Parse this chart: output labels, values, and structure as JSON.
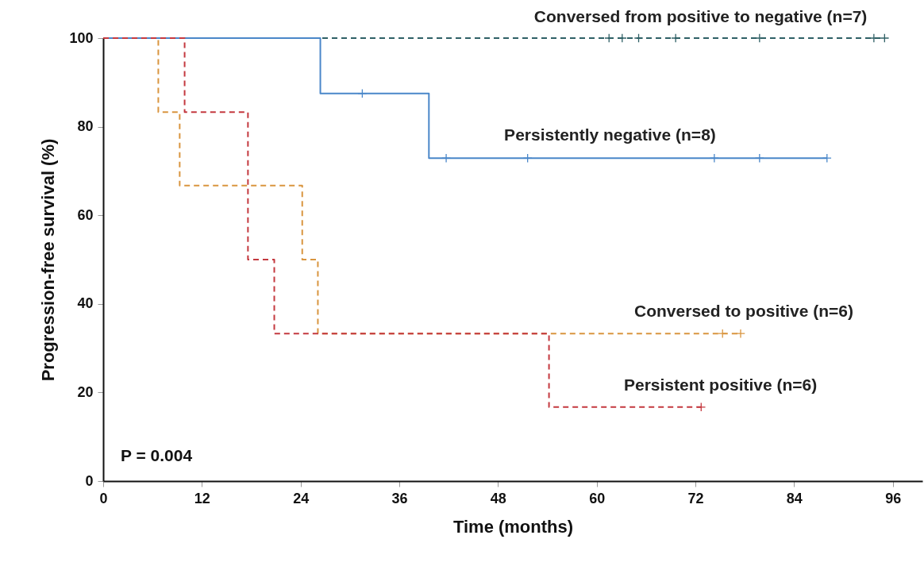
{
  "chart_data": {
    "type": "step",
    "xlabel": "Time (months)",
    "ylabel": "Progression-free survival (%)",
    "xlim": [
      0,
      99.6
    ],
    "ylim": [
      0,
      100
    ],
    "xticks": [
      0,
      12,
      24,
      36,
      48,
      60,
      72,
      84,
      96
    ],
    "yticks": [
      0,
      20,
      40,
      60,
      80,
      100
    ],
    "grid": false,
    "annotations": [
      "P = 0.004"
    ],
    "series": [
      {
        "name": "Conversed from positive to negative (n=7)",
        "line_style": "dashed",
        "color": "#2f6066",
        "x": [
          0,
          95.0
        ],
        "values": [
          100,
          100
        ]
      },
      {
        "name": "Persistently negative (n=8)",
        "line_style": "solid",
        "color": "#4a87c9",
        "x": [
          0,
          26.4,
          39.6,
          88.0
        ],
        "values": [
          100,
          87.5,
          72.9,
          72.9
        ]
      },
      {
        "name": "Conversed to positive (n=6)",
        "line_style": "dashed",
        "color": "#d9953f",
        "x": [
          0,
          6.7,
          9.3,
          24.2,
          26.1,
          77.5
        ],
        "values": [
          100,
          83.3,
          66.7,
          50,
          33.3,
          33.3
        ]
      },
      {
        "name": "Persistent  positive (n=6)",
        "line_style": "dashed",
        "color": "#c4393f",
        "x": [
          0,
          9.9,
          17.6,
          20.8,
          54.2,
          72.7
        ],
        "values": [
          100,
          83.3,
          50,
          33.3,
          16.7,
          16.7
        ]
      },
      {
        "type": "scatter",
        "marker": "cross",
        "color": "#2f6066",
        "x": [
          61.5,
          63.1,
          65.1,
          69.6,
          79.8,
          93.7,
          95.0
        ],
        "values": [
          100,
          100,
          100,
          100,
          100,
          100,
          100
        ]
      },
      {
        "type": "scatter",
        "marker": "cross",
        "color": "#4a87c9",
        "x": [
          31.5,
          41.7,
          51.6,
          74.3,
          79.8,
          88.0
        ],
        "values": [
          87.5,
          72.9,
          72.9,
          72.9,
          72.9,
          72.9
        ]
      },
      {
        "type": "scatter",
        "marker": "cross",
        "color": "#d9953f",
        "x": [
          75.3,
          77.5
        ],
        "values": [
          33.3,
          33.3
        ]
      },
      {
        "type": "scatter",
        "marker": "cross",
        "color": "#c4393f",
        "x": [
          72.7
        ],
        "values": [
          16.7
        ]
      }
    ]
  }
}
